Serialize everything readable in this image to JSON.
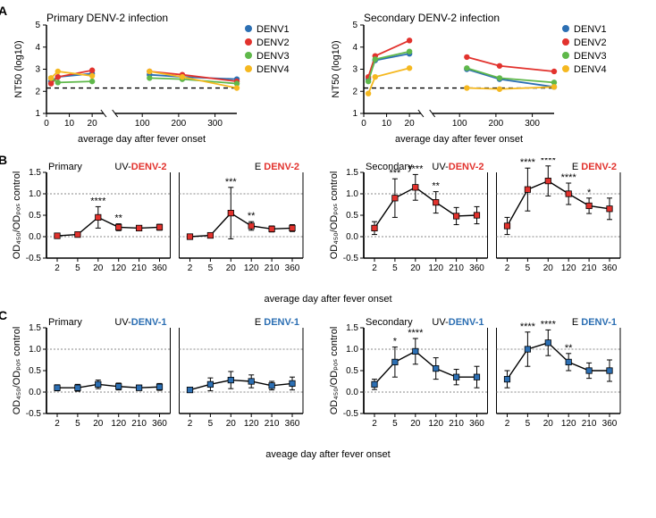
{
  "colors": {
    "DENV1": "#2c6fb3",
    "DENV2": "#e2322d",
    "DENV3": "#5fb84a",
    "DENV4": "#f5b820",
    "axis": "#000000",
    "dotted": "#999999",
    "bg": "#ffffff",
    "black": "#000000",
    "uv_label": "#e2322d",
    "e_label": "#e2322d",
    "uv1_label": "#2c6fb3"
  },
  "rowA": {
    "ylabel": "NT50 (log10)",
    "xlabel": "average day after fever onset",
    "ylim": [
      1,
      5
    ],
    "xticks_left": [
      0,
      10,
      20
    ],
    "xticks_right": [
      100,
      200,
      300
    ],
    "dash_y": 2.15,
    "primary": {
      "title": "Primary DENV-2 infection",
      "legend": [
        "DENV1",
        "DENV2",
        "DENV3",
        "DENV4"
      ],
      "x": [
        2,
        5,
        20,
        120,
        210,
        360
      ],
      "DENV1": [
        2.45,
        2.65,
        2.8,
        2.75,
        2.65,
        2.55
      ],
      "DENV2": [
        2.35,
        2.65,
        2.95,
        2.9,
        2.75,
        2.45
      ],
      "DENV3": [
        2.6,
        2.4,
        2.45,
        2.6,
        2.55,
        2.35
      ],
      "DENV4": [
        2.6,
        2.9,
        2.7,
        2.9,
        2.65,
        2.15
      ]
    },
    "secondary": {
      "title": "Secondary DENV-2 infection",
      "legend": [
        "DENV1",
        "DENV2",
        "DENV3",
        "DENV4"
      ],
      "x": [
        2,
        5,
        20,
        120,
        210,
        360
      ],
      "DENV1": [
        2.55,
        3.4,
        3.7,
        3.0,
        2.55,
        2.2
      ],
      "DENV2": [
        2.65,
        3.6,
        4.3,
        3.55,
        3.15,
        2.9
      ],
      "DENV3": [
        2.45,
        3.45,
        3.8,
        3.05,
        2.6,
        2.4
      ],
      "DENV4": [
        1.9,
        2.65,
        3.05,
        2.15,
        2.1,
        2.2
      ]
    }
  },
  "rowB": {
    "ylabel": "OD₄₅₀/ODₚₒₛ control",
    "shared_xlabel": "average day after fever onset",
    "ylim": [
      -0.5,
      1.5
    ],
    "xticks": [
      2,
      5,
      20,
      120,
      210,
      360
    ],
    "primary": {
      "title": "Primary",
      "uv_label_plain": "UV-",
      "uv_label_color": "DENV-2",
      "e_label_plain": "E ",
      "e_label_color": "DENV-2",
      "color": "#e2322d",
      "uv": {
        "x": [
          2,
          5,
          20,
          120,
          210,
          360
        ],
        "y": [
          0.02,
          0.05,
          0.45,
          0.22,
          0.2,
          0.22
        ],
        "err": [
          0.05,
          0.06,
          0.25,
          0.08,
          0.06,
          0.07
        ],
        "sig": [
          "",
          "",
          "****",
          "**",
          "",
          ""
        ]
      },
      "e": {
        "x": [
          2,
          5,
          20,
          120,
          210,
          360
        ],
        "y": [
          0.0,
          0.03,
          0.55,
          0.25,
          0.18,
          0.2
        ],
        "err": [
          0.04,
          0.05,
          0.6,
          0.1,
          0.07,
          0.08
        ],
        "sig": [
          "",
          "",
          "***",
          "**",
          "",
          ""
        ]
      }
    },
    "secondary": {
      "title": "Secondary",
      "uv_label_plain": "UV-",
      "uv_label_color": "DENV-2",
      "e_label_plain": "E ",
      "e_label_color": "DENV-2",
      "color": "#e2322d",
      "uv": {
        "x": [
          2,
          5,
          20,
          120,
          210,
          360
        ],
        "y": [
          0.2,
          0.9,
          1.15,
          0.8,
          0.48,
          0.5
        ],
        "err": [
          0.15,
          0.45,
          0.3,
          0.25,
          0.2,
          0.2
        ],
        "sig": [
          "",
          "***",
          "****",
          "**",
          "",
          ""
        ]
      },
      "e": {
        "x": [
          2,
          5,
          20,
          120,
          210,
          360
        ],
        "y": [
          0.25,
          1.1,
          1.3,
          1.0,
          0.72,
          0.65
        ],
        "err": [
          0.2,
          0.5,
          0.35,
          0.25,
          0.18,
          0.25
        ],
        "sig": [
          "",
          "****",
          "****",
          "****",
          "*",
          ""
        ]
      }
    }
  },
  "rowC": {
    "ylabel": "OD₄₅₀/ODₚₒₛ control",
    "shared_xlabel": "aveage day after fever onset",
    "ylim": [
      -0.5,
      1.5
    ],
    "xticks": [
      2,
      5,
      20,
      120,
      210,
      360
    ],
    "primary": {
      "title": "Primary",
      "uv_label_plain": "UV-",
      "uv_label_color": "DENV-1",
      "e_label_plain": "E ",
      "e_label_color": "DENV-1",
      "color": "#2c6fb3",
      "uv": {
        "x": [
          2,
          5,
          20,
          120,
          210,
          360
        ],
        "y": [
          0.1,
          0.1,
          0.18,
          0.13,
          0.1,
          0.12
        ],
        "err": [
          0.07,
          0.08,
          0.1,
          0.08,
          0.06,
          0.08
        ],
        "sig": [
          "",
          "",
          "",
          "",
          "",
          ""
        ]
      },
      "e": {
        "x": [
          2,
          5,
          20,
          120,
          210,
          360
        ],
        "y": [
          0.05,
          0.18,
          0.28,
          0.25,
          0.15,
          0.2
        ],
        "err": [
          0.06,
          0.15,
          0.2,
          0.15,
          0.1,
          0.15
        ],
        "sig": [
          "",
          "",
          "",
          "",
          "",
          ""
        ]
      }
    },
    "secondary": {
      "title": "Secondary",
      "uv_label_plain": "UV-",
      "uv_label_color": "DENV-1",
      "e_label_plain": "E ",
      "e_label_color": "DENV-1",
      "color": "#2c6fb3",
      "uv": {
        "x": [
          2,
          5,
          20,
          120,
          210,
          360
        ],
        "y": [
          0.18,
          0.7,
          0.95,
          0.55,
          0.35,
          0.35
        ],
        "err": [
          0.12,
          0.35,
          0.3,
          0.25,
          0.18,
          0.25
        ],
        "sig": [
          "",
          "*",
          "****",
          "",
          "",
          ""
        ]
      },
      "e": {
        "x": [
          2,
          5,
          20,
          120,
          210,
          360
        ],
        "y": [
          0.3,
          1.0,
          1.15,
          0.7,
          0.5,
          0.5
        ],
        "err": [
          0.2,
          0.4,
          0.3,
          0.2,
          0.18,
          0.25
        ],
        "sig": [
          "",
          "****",
          "****",
          "**",
          "",
          ""
        ]
      }
    }
  },
  "letters": {
    "A": "A",
    "B": "B",
    "C": "C"
  }
}
